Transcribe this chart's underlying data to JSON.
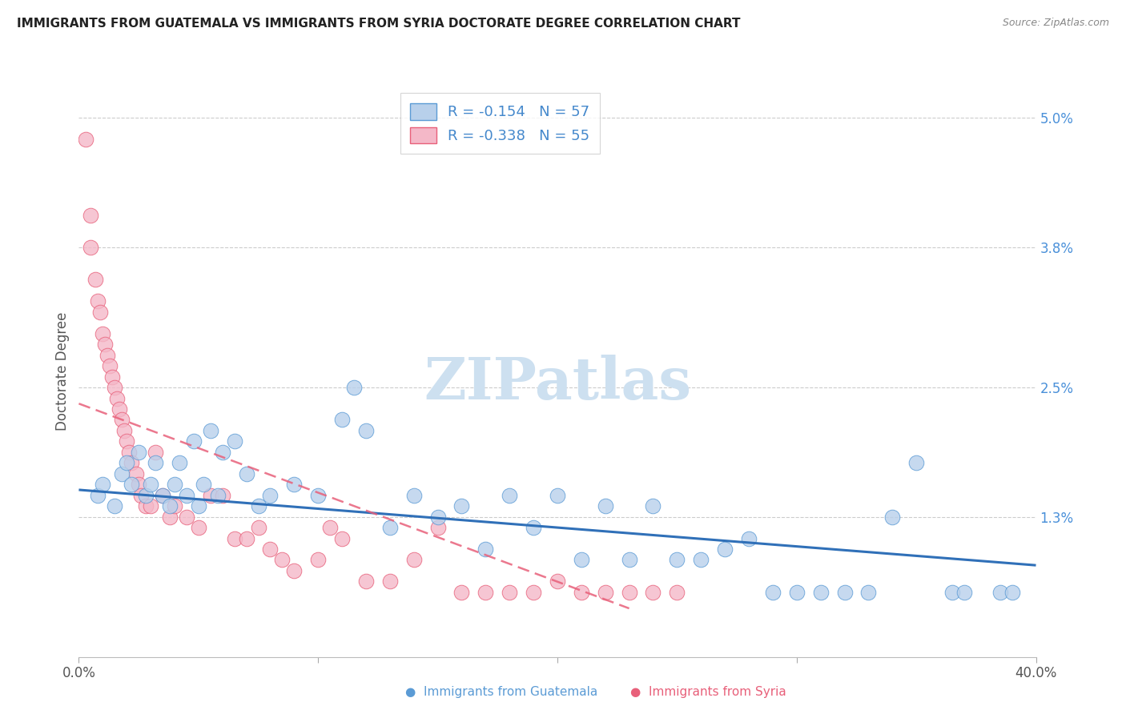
{
  "title": "IMMIGRANTS FROM GUATEMALA VS IMMIGRANTS FROM SYRIA DOCTORATE DEGREE CORRELATION CHART",
  "source": "Source: ZipAtlas.com",
  "ylabel": "Doctorate Degree",
  "ytick_vals": [
    0.0,
    1.3,
    2.5,
    3.8,
    5.0
  ],
  "ytick_labels": [
    "",
    "1.3%",
    "2.5%",
    "3.8%",
    "5.0%"
  ],
  "xlim": [
    0.0,
    40.0
  ],
  "ylim": [
    0.0,
    5.3
  ],
  "legend_line1": "R = -0.154   N = 57",
  "legend_line2": "R = -0.338   N = 55",
  "color_blue_fill": "#b8d0eb",
  "color_blue_edge": "#5b9bd5",
  "color_pink_fill": "#f4b8c8",
  "color_pink_edge": "#e8607a",
  "line_blue_color": "#3070b8",
  "line_pink_color": "#d84060",
  "watermark": "ZIPatlas",
  "guatemala_x": [
    0.8,
    1.0,
    1.5,
    1.8,
    2.0,
    2.2,
    2.5,
    2.8,
    3.0,
    3.2,
    3.5,
    3.8,
    4.0,
    4.2,
    4.5,
    4.8,
    5.0,
    5.2,
    5.5,
    5.8,
    6.0,
    6.5,
    7.0,
    7.5,
    8.0,
    9.0,
    10.0,
    11.0,
    11.5,
    12.0,
    13.0,
    14.0,
    15.0,
    16.0,
    17.0,
    18.0,
    19.0,
    20.0,
    21.0,
    22.0,
    23.0,
    24.0,
    25.0,
    26.0,
    27.0,
    28.0,
    29.0,
    30.0,
    31.0,
    32.0,
    33.0,
    34.0,
    35.0,
    36.5,
    37.0,
    38.5,
    39.0
  ],
  "guatemala_y": [
    1.5,
    1.6,
    1.4,
    1.7,
    1.8,
    1.6,
    1.9,
    1.5,
    1.6,
    1.8,
    1.5,
    1.4,
    1.6,
    1.8,
    1.5,
    2.0,
    1.4,
    1.6,
    2.1,
    1.5,
    1.9,
    2.0,
    1.7,
    1.4,
    1.5,
    1.6,
    1.5,
    2.2,
    2.5,
    2.1,
    1.2,
    1.5,
    1.3,
    1.4,
    1.0,
    1.5,
    1.2,
    1.5,
    0.9,
    1.4,
    0.9,
    1.4,
    0.9,
    0.9,
    1.0,
    1.1,
    0.6,
    0.6,
    0.6,
    0.6,
    0.6,
    1.3,
    1.8,
    0.6,
    0.6,
    0.6,
    0.6
  ],
  "syria_x": [
    0.3,
    0.5,
    0.5,
    0.7,
    0.8,
    0.9,
    1.0,
    1.1,
    1.2,
    1.3,
    1.4,
    1.5,
    1.6,
    1.7,
    1.8,
    1.9,
    2.0,
    2.1,
    2.2,
    2.4,
    2.5,
    2.6,
    2.8,
    3.0,
    3.2,
    3.5,
    3.8,
    4.0,
    4.5,
    5.0,
    5.5,
    6.0,
    6.5,
    7.0,
    7.5,
    8.0,
    8.5,
    9.0,
    10.0,
    10.5,
    11.0,
    12.0,
    13.0,
    14.0,
    15.0,
    16.0,
    17.0,
    18.0,
    19.0,
    20.0,
    21.0,
    22.0,
    23.0,
    24.0,
    25.0
  ],
  "syria_y": [
    4.8,
    4.1,
    3.8,
    3.5,
    3.3,
    3.2,
    3.0,
    2.9,
    2.8,
    2.7,
    2.6,
    2.5,
    2.4,
    2.3,
    2.2,
    2.1,
    2.0,
    1.9,
    1.8,
    1.7,
    1.6,
    1.5,
    1.4,
    1.4,
    1.9,
    1.5,
    1.3,
    1.4,
    1.3,
    1.2,
    1.5,
    1.5,
    1.1,
    1.1,
    1.2,
    1.0,
    0.9,
    0.8,
    0.9,
    1.2,
    1.1,
    0.7,
    0.7,
    0.9,
    1.2,
    0.6,
    0.6,
    0.6,
    0.6,
    0.7,
    0.6,
    0.6,
    0.6,
    0.6,
    0.6
  ],
  "blue_trend_x": [
    0.0,
    40.0
  ],
  "blue_trend_y": [
    1.55,
    0.85
  ],
  "pink_trend_x": [
    0.0,
    23.0
  ],
  "pink_trend_y": [
    2.35,
    0.45
  ]
}
